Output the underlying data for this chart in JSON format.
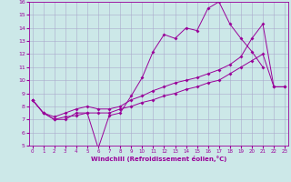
{
  "xlabel": "Windchill (Refroidissement éolien,°C)",
  "x": [
    0,
    1,
    2,
    3,
    4,
    5,
    6,
    7,
    8,
    9,
    10,
    11,
    12,
    13,
    14,
    15,
    16,
    17,
    18,
    19,
    20,
    21,
    22,
    23
  ],
  "line1": [
    8.5,
    7.5,
    7.0,
    7.0,
    7.5,
    7.5,
    4.8,
    7.3,
    7.5,
    8.8,
    10.2,
    12.2,
    13.5,
    13.2,
    14.0,
    13.8,
    15.5,
    16.0,
    14.3,
    13.2,
    12.2,
    11.0,
    null,
    null
  ],
  "line2": [
    8.5,
    7.5,
    7.0,
    7.2,
    7.3,
    7.5,
    7.5,
    7.5,
    7.8,
    8.0,
    8.3,
    8.5,
    8.8,
    9.0,
    9.3,
    9.5,
    9.8,
    10.0,
    10.5,
    11.0,
    11.5,
    12.0,
    9.5,
    9.5
  ],
  "line3": [
    8.5,
    7.5,
    7.2,
    7.5,
    7.8,
    8.0,
    7.8,
    7.8,
    8.0,
    8.5,
    8.8,
    9.2,
    9.5,
    9.8,
    10.0,
    10.2,
    10.5,
    10.8,
    11.2,
    11.8,
    13.2,
    14.3,
    9.5,
    9.5
  ],
  "color": "#990099",
  "bg_color": "#cce8e8",
  "grid_color": "#aaaacc",
  "ylim_min": 5,
  "ylim_max": 16,
  "xlim_min": 0,
  "xlim_max": 23
}
